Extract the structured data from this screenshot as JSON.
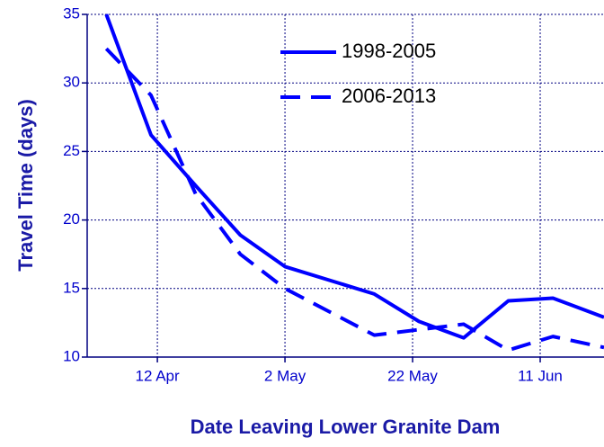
{
  "chart_data": {
    "type": "line",
    "xlabel": "Date Leaving Lower Granite Dam",
    "ylabel": "Travel Time (days)",
    "xlim": [
      91,
      172
    ],
    "ylim": [
      10,
      35
    ],
    "xticks": [
      {
        "value": 102,
        "label": "12 Apr"
      },
      {
        "value": 122,
        "label": "2 May"
      },
      {
        "value": 142,
        "label": "22 May"
      },
      {
        "value": 162,
        "label": "11 Jun"
      }
    ],
    "yticks": [
      10,
      15,
      20,
      25,
      30,
      35
    ],
    "grid": true,
    "legend": "upper center",
    "series": [
      {
        "name": "1998-2005",
        "color": "#0000ff",
        "line_style": "solid",
        "x": [
          94,
          101,
          108,
          115,
          122,
          136,
          143,
          150,
          157,
          164,
          172
        ],
        "values": [
          35,
          26.2,
          22.5,
          18.9,
          16.6,
          14.6,
          12.6,
          11.4,
          14.1,
          14.3,
          12.9
        ]
      },
      {
        "name": "2006-2013",
        "color": "#0000ff",
        "line_style": "dashed",
        "x": [
          94,
          101,
          108,
          115,
          122,
          136,
          150,
          157,
          164,
          172
        ],
        "values": [
          32.5,
          29.1,
          21.9,
          17.5,
          15.0,
          11.6,
          12.4,
          10.5,
          11.5,
          10.7
        ]
      }
    ]
  }
}
